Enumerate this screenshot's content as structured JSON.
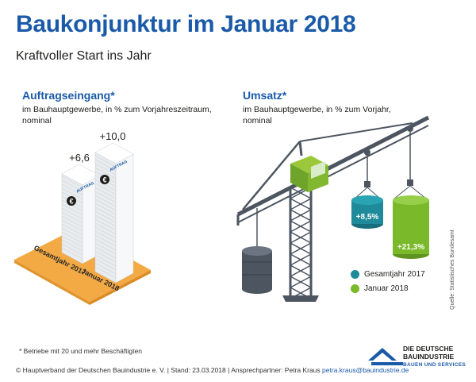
{
  "header": {
    "title": "Baukonjunktur im Januar 2018",
    "subtitle": "Kraftvoller Start ins Jahr"
  },
  "left_panel": {
    "heading": "Auftragseingang*",
    "description": "im Bauhauptgewerbe, in % zum Vorjahreszeitraum, nominal",
    "stack_label": "AUFTRAG"
  },
  "right_panel": {
    "heading": "Umsatz*",
    "description": "im Bauhauptgewerbe, in % zum Vorjahr, nominal"
  },
  "legend": {
    "item_2017": "Gesamtjahr 2017",
    "item_2018": "Januar 2018"
  },
  "footnote": "* Betriebe mit 20 und mehr Beschäftigten",
  "footer": {
    "text": "© Hauptverband der Deutschen Bauindustrie e. V. | Stand: 23.03.2018 | Ansprechpartner: Petra Kraus",
    "email": "petra.kraus@bauindustrie.de"
  },
  "source": "Quelle: Statistisches Bundesamt",
  "logo": {
    "line1": "DIE DEUTSCHE",
    "line2": "BAUINDUSTRIE",
    "tagline": "BAUEN UND SERVICES"
  },
  "colors": {
    "title_blue": "#1a5aa8",
    "teal_2017": "#1e8a9a",
    "green_2018": "#7ab929",
    "platform_orange": "#f3a944",
    "crane_grey": "#4c5560"
  },
  "chart_data": [
    {
      "type": "bar",
      "title": "Auftragseingang*",
      "categories": [
        "Gesamtjahr 2017",
        "Januar 2018"
      ],
      "values": [
        6.6,
        10.0
      ],
      "value_labels": [
        "+6,6",
        "+10,0"
      ],
      "unit": "%"
    },
    {
      "type": "bar",
      "title": "Umsatz*",
      "categories": [
        "Gesamtjahr 2017",
        "Januar 2018"
      ],
      "values": [
        8.5,
        21.3
      ],
      "value_labels": [
        "+8,5%",
        "+21,3%"
      ],
      "unit": "%"
    }
  ]
}
